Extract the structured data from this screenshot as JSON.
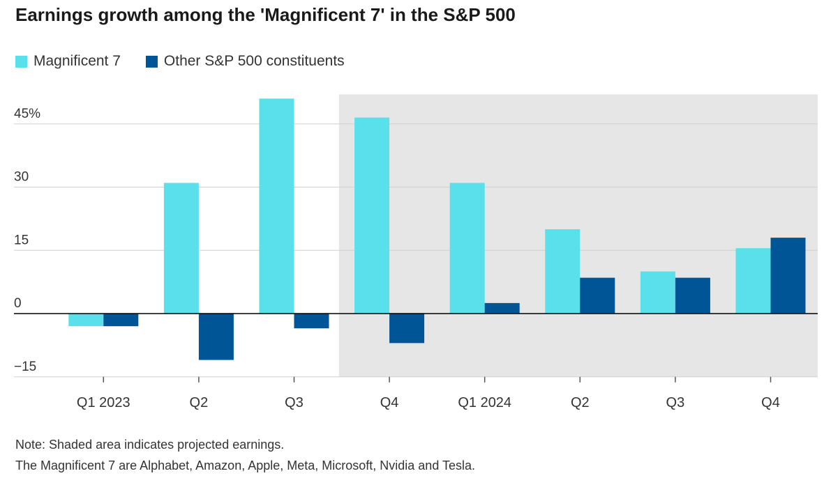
{
  "chart_data": {
    "type": "bar",
    "title": "Earnings growth among the 'Magnificent 7' in the S&P 500",
    "categories": [
      "Q1 2023",
      "Q2",
      "Q3",
      "Q4",
      "Q1 2024",
      "Q2",
      "Q3",
      "Q4"
    ],
    "series": [
      {
        "name": "Magnificent 7",
        "values": [
          -3,
          31,
          51,
          46.5,
          31,
          20,
          10,
          15.5
        ],
        "color": "#59e0ea"
      },
      {
        "name": "Other S&P 500 constituents",
        "values": [
          -3,
          -11,
          -3.5,
          -7,
          2.5,
          8.5,
          8.5,
          18
        ],
        "color": "#005596"
      }
    ],
    "ylim": [
      -15,
      52
    ],
    "yticks": [
      {
        "value": 45,
        "label": "45%"
      },
      {
        "value": 30,
        "label": "30"
      },
      {
        "value": 15,
        "label": "15"
      },
      {
        "value": 0,
        "label": "0"
      },
      {
        "value": -15,
        "label": "−15"
      }
    ],
    "shaded_from_index": 3,
    "shade_color": "#e6e6e6",
    "grid": true,
    "legend_position": "top-left",
    "xlabel": "",
    "ylabel": ""
  },
  "notes": {
    "line1": "Note: Shaded area indicates projected earnings.",
    "line2": "The Magnificent 7 are Alphabet, Amazon, Apple, Meta, Microsoft, Nvidia and Tesla."
  }
}
